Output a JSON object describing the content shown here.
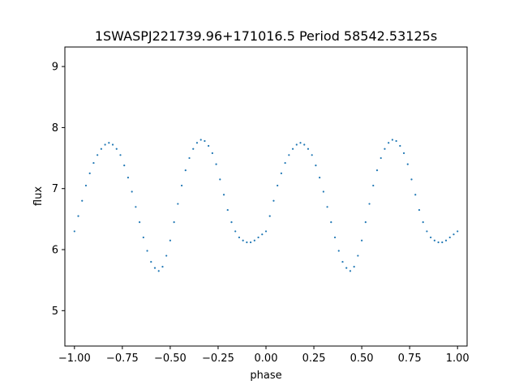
{
  "chart_data": {
    "type": "scatter",
    "title": "1SWASPJ221739.96+171016.5 Period 58542.53125s",
    "xlabel": "phase",
    "ylabel": "flux",
    "xlim": [
      -1.05,
      1.05
    ],
    "ylim": [
      4.42,
      9.32
    ],
    "xticks": [
      -1.0,
      -0.75,
      -0.5,
      -0.25,
      0.0,
      0.25,
      0.5,
      0.75,
      1.0
    ],
    "xtick_labels": [
      "−1.00",
      "−0.75",
      "−0.50",
      "−0.25",
      "0.00",
      "0.25",
      "0.50",
      "0.75",
      "1.00"
    ],
    "yticks": [
      5,
      6,
      7,
      8,
      9
    ],
    "ytick_labels": [
      "5",
      "6",
      "7",
      "8",
      "9"
    ],
    "grid": false,
    "point_color": "#1f77b4",
    "series": [
      {
        "x": [
          -1.0,
          -0.98,
          -0.96,
          -0.94,
          -0.92,
          -0.9,
          -0.88,
          -0.86,
          -0.84,
          -0.82,
          -0.8,
          -0.78,
          -0.76,
          -0.74,
          -0.72,
          -0.7,
          -0.68,
          -0.66,
          -0.64,
          -0.62,
          -0.6,
          -0.58,
          -0.56,
          -0.54,
          -0.52,
          -0.5,
          -0.48,
          -0.46,
          -0.44,
          -0.42,
          -0.4,
          -0.38,
          -0.36,
          -0.34,
          -0.32,
          -0.3,
          -0.28,
          -0.26,
          -0.24,
          -0.22,
          -0.2,
          -0.18,
          -0.16,
          -0.14,
          -0.12,
          -0.1,
          -0.08,
          -0.06,
          -0.04,
          -0.02,
          0.0,
          0.02,
          0.04,
          0.06,
          0.08,
          0.1,
          0.12,
          0.14,
          0.16,
          0.18,
          0.2,
          0.22,
          0.24,
          0.26,
          0.28,
          0.3,
          0.32,
          0.34,
          0.36,
          0.38,
          0.4,
          0.42,
          0.44,
          0.46,
          0.48,
          0.5,
          0.52,
          0.54,
          0.56,
          0.58,
          0.6,
          0.62,
          0.64,
          0.66,
          0.68,
          0.7,
          0.72,
          0.74,
          0.76,
          0.78,
          0.8,
          0.82,
          0.84,
          0.86,
          0.88,
          0.9,
          0.92,
          0.94,
          0.96,
          0.98,
          1.0
        ],
        "y": [
          6.3,
          6.55,
          6.8,
          7.05,
          7.25,
          7.42,
          7.55,
          7.65,
          7.72,
          7.75,
          7.72,
          7.65,
          7.55,
          7.38,
          7.18,
          6.95,
          6.7,
          6.45,
          6.2,
          5.98,
          5.8,
          5.7,
          5.65,
          5.72,
          5.9,
          6.15,
          6.45,
          6.75,
          7.05,
          7.3,
          7.5,
          7.65,
          7.75,
          7.8,
          7.78,
          7.7,
          7.58,
          7.4,
          7.15,
          6.9,
          6.65,
          6.45,
          6.3,
          6.2,
          6.15,
          6.12,
          6.12,
          6.15,
          6.2,
          6.25,
          6.3,
          6.55,
          6.8,
          7.05,
          7.25,
          7.42,
          7.55,
          7.65,
          7.72,
          7.75,
          7.72,
          7.65,
          7.55,
          7.38,
          7.18,
          6.95,
          6.7,
          6.45,
          6.2,
          5.98,
          5.8,
          5.7,
          5.65,
          5.72,
          5.9,
          6.15,
          6.45,
          6.75,
          7.05,
          7.3,
          7.5,
          7.65,
          7.75,
          7.8,
          7.78,
          7.7,
          7.58,
          7.4,
          7.15,
          6.9,
          6.65,
          6.45,
          6.3,
          6.2,
          6.15,
          6.12,
          6.12,
          6.15,
          6.2,
          6.25,
          6.3
        ]
      }
    ]
  }
}
